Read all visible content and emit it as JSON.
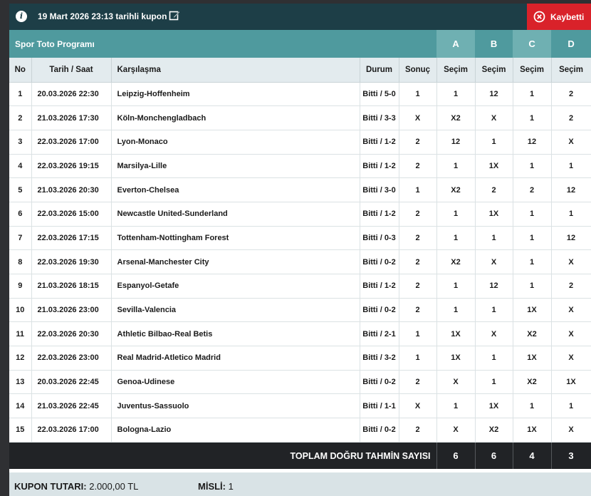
{
  "header": {
    "title": "19 Mart 2026 23:13 tarihli kupon",
    "status_label": "Kaybetti"
  },
  "program": {
    "title": "Spor Toto Programı",
    "groups": [
      "A",
      "B",
      "C",
      "D"
    ]
  },
  "columns": {
    "no": "No",
    "date": "Tarih / Saat",
    "match": "Karşılaşma",
    "status": "Durum",
    "result": "Sonuç",
    "pick": "Seçim"
  },
  "rows": [
    {
      "no": "1",
      "date": "20.03.2026 22:30",
      "match": "Leipzig-Hoffenheim",
      "status": "Bitti / 5-0",
      "result": "1",
      "picks": [
        "1",
        "12",
        "1",
        "2"
      ],
      "correct": [
        true,
        true,
        true,
        false
      ]
    },
    {
      "no": "2",
      "date": "21.03.2026 17:30",
      "match": "Köln-Monchengladbach",
      "status": "Bitti / 3-3",
      "result": "X",
      "picks": [
        "X2",
        "X",
        "1",
        "2"
      ],
      "correct": [
        true,
        true,
        false,
        false
      ]
    },
    {
      "no": "3",
      "date": "22.03.2026 17:00",
      "match": "Lyon-Monaco",
      "status": "Bitti / 1-2",
      "result": "2",
      "picks": [
        "12",
        "1",
        "12",
        "X"
      ],
      "correct": [
        true,
        false,
        true,
        false
      ]
    },
    {
      "no": "4",
      "date": "22.03.2026 19:15",
      "match": "Marsilya-Lille",
      "status": "Bitti / 1-2",
      "result": "2",
      "picks": [
        "1",
        "1X",
        "1",
        "1"
      ],
      "correct": [
        false,
        false,
        false,
        false
      ]
    },
    {
      "no": "5",
      "date": "21.03.2026 20:30",
      "match": "Everton-Chelsea",
      "status": "Bitti / 3-0",
      "result": "1",
      "picks": [
        "X2",
        "2",
        "2",
        "12"
      ],
      "correct": [
        false,
        false,
        false,
        true
      ]
    },
    {
      "no": "6",
      "date": "22.03.2026 15:00",
      "match": "Newcastle United-Sunderland",
      "status": "Bitti / 1-2",
      "result": "2",
      "picks": [
        "1",
        "1X",
        "1",
        "1"
      ],
      "correct": [
        false,
        false,
        false,
        false
      ]
    },
    {
      "no": "7",
      "date": "22.03.2026 17:15",
      "match": "Tottenham-Nottingham Forest",
      "status": "Bitti / 0-3",
      "result": "2",
      "picks": [
        "1",
        "1",
        "1",
        "12"
      ],
      "correct": [
        false,
        false,
        false,
        true
      ]
    },
    {
      "no": "8",
      "date": "22.03.2026 19:30",
      "match": "Arsenal-Manchester City",
      "status": "Bitti / 0-2",
      "result": "2",
      "picks": [
        "X2",
        "X",
        "1",
        "X"
      ],
      "correct": [
        true,
        false,
        false,
        false
      ]
    },
    {
      "no": "9",
      "date": "21.03.2026 18:15",
      "match": "Espanyol-Getafe",
      "status": "Bitti / 1-2",
      "result": "2",
      "picks": [
        "1",
        "12",
        "1",
        "2"
      ],
      "correct": [
        false,
        true,
        false,
        true
      ]
    },
    {
      "no": "10",
      "date": "21.03.2026 23:00",
      "match": "Sevilla-Valencia",
      "status": "Bitti / 0-2",
      "result": "2",
      "picks": [
        "1",
        "1",
        "1X",
        "X"
      ],
      "correct": [
        false,
        false,
        false,
        false
      ]
    },
    {
      "no": "11",
      "date": "22.03.2026 20:30",
      "match": "Athletic Bilbao-Real Betis",
      "status": "Bitti / 2-1",
      "result": "1",
      "picks": [
        "1X",
        "X",
        "X2",
        "X"
      ],
      "correct": [
        true,
        false,
        false,
        false
      ]
    },
    {
      "no": "12",
      "date": "22.03.2026 23:00",
      "match": "Real Madrid-Atletico Madrid",
      "status": "Bitti / 3-2",
      "result": "1",
      "picks": [
        "1X",
        "1",
        "1X",
        "X"
      ],
      "correct": [
        true,
        true,
        true,
        false
      ]
    },
    {
      "no": "13",
      "date": "20.03.2026 22:45",
      "match": "Genoa-Udinese",
      "status": "Bitti / 0-2",
      "result": "2",
      "picks": [
        "X",
        "1",
        "X2",
        "1X"
      ],
      "correct": [
        false,
        false,
        true,
        false
      ]
    },
    {
      "no": "14",
      "date": "21.03.2026 22:45",
      "match": "Juventus-Sassuolo",
      "status": "Bitti / 1-1",
      "result": "X",
      "picks": [
        "1",
        "1X",
        "1",
        "1"
      ],
      "correct": [
        false,
        true,
        false,
        false
      ]
    },
    {
      "no": "15",
      "date": "22.03.2026 17:00",
      "match": "Bologna-Lazio",
      "status": "Bitti / 0-2",
      "result": "2",
      "picks": [
        "X",
        "X2",
        "1X",
        "X"
      ],
      "correct": [
        false,
        true,
        false,
        false
      ]
    }
  ],
  "totals": {
    "label": "TOPLAM DOĞRU TAHMİN SAYISI",
    "values": [
      "6",
      "6",
      "4",
      "3"
    ]
  },
  "footer": {
    "amount_label": "KUPON TUTARI:",
    "amount_value": "2.000,00 TL",
    "multiplier_label": "MİSLİ:",
    "multiplier_value": "1"
  },
  "colors": {
    "correct": "#2e9e2a",
    "wrong": "#d9222a",
    "topbar": "#1d3e47",
    "teal": "#4f9a9e",
    "lost": "#d9222a"
  },
  "icons": {
    "info": "info-icon",
    "edit": "edit-icon",
    "lost": "close-circle-icon"
  }
}
